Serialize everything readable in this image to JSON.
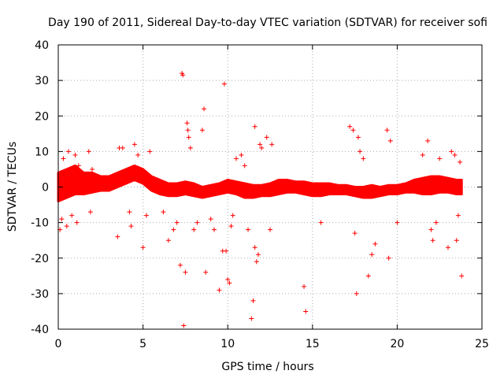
{
  "chart_data": {
    "type": "scatter",
    "title": "Day 190 of 2011, Sidereal Day-to-day VTEC variation (SDTVAR) for receiver sofi",
    "xlabel": "GPS time / hours",
    "ylabel": "SDTVAR / TECUs",
    "xlim": [
      0,
      25
    ],
    "ylim": [
      -40,
      40
    ],
    "x_ticks": [
      0,
      5,
      10,
      15,
      20,
      25
    ],
    "x_tick_labels": [
      "0",
      "5",
      "10",
      "15",
      "20",
      "25"
    ],
    "y_ticks": [
      -40,
      -30,
      -20,
      -10,
      0,
      10,
      20,
      30,
      40
    ],
    "y_tick_labels": [
      "-40",
      "-30",
      "-20",
      "-10",
      "0",
      "10",
      "20",
      "30",
      "40"
    ],
    "grid": true,
    "marker": "plus",
    "color": "#ff0000",
    "band_envelope": {
      "x": [
        0,
        0.5,
        1,
        1.5,
        2,
        2.5,
        3,
        3.5,
        4,
        4.5,
        5,
        5.5,
        6,
        6.5,
        7,
        7.5,
        8,
        8.5,
        9,
        9.5,
        10,
        10.5,
        11,
        11.5,
        12,
        12.5,
        13,
        13.5,
        14,
        14.5,
        15,
        15.5,
        16,
        16.5,
        17,
        17.5,
        18,
        18.5,
        19,
        19.5,
        20,
        20.5,
        21,
        21.5,
        22,
        22.5,
        23,
        23.5,
        23.8
      ],
      "upper": [
        4,
        5,
        6,
        4,
        4,
        3,
        3,
        4,
        5,
        6,
        5,
        3,
        2,
        1,
        1,
        1.5,
        1,
        0,
        0.5,
        1,
        2,
        1.5,
        1,
        0.5,
        0.5,
        1,
        2,
        2,
        1.5,
        1.5,
        1,
        1,
        1,
        0.5,
        0.5,
        0,
        0,
        0.5,
        0,
        0.5,
        0.5,
        1,
        2,
        2.5,
        3,
        3,
        2.5,
        2,
        2
      ],
      "lower": [
        -4,
        -3,
        -2,
        -2,
        -1.5,
        -1,
        -1,
        0,
        1,
        2,
        1,
        -1,
        -2,
        -2.5,
        -2.5,
        -2,
        -2.5,
        -3,
        -2.5,
        -2,
        -1.5,
        -2,
        -3,
        -3,
        -2.5,
        -2.5,
        -2,
        -1.5,
        -1.5,
        -2,
        -2.5,
        -2.5,
        -2,
        -2,
        -2,
        -2.5,
        -3,
        -3,
        -2.5,
        -2,
        -2,
        -1.5,
        -1.5,
        -2,
        -2,
        -1.5,
        -1.5,
        -2,
        -2
      ]
    },
    "scattered_points": [
      [
        0.1,
        -12
      ],
      [
        0.2,
        -9
      ],
      [
        0.3,
        8
      ],
      [
        0.5,
        -11
      ],
      [
        0.6,
        10
      ],
      [
        0.8,
        -8
      ],
      [
        1.0,
        9
      ],
      [
        1.1,
        -10
      ],
      [
        1.2,
        6
      ],
      [
        1.8,
        10
      ],
      [
        1.9,
        -7
      ],
      [
        2.0,
        5
      ],
      [
        3.5,
        -14
      ],
      [
        3.6,
        11
      ],
      [
        3.8,
        11
      ],
      [
        4.2,
        -7
      ],
      [
        4.3,
        -11
      ],
      [
        4.5,
        12
      ],
      [
        4.7,
        9
      ],
      [
        5.0,
        -17
      ],
      [
        5.2,
        -8
      ],
      [
        5.4,
        10
      ],
      [
        6.2,
        -7
      ],
      [
        6.5,
        -15
      ],
      [
        6.8,
        -12
      ],
      [
        7.0,
        -10
      ],
      [
        7.2,
        -22
      ],
      [
        7.3,
        32
      ],
      [
        7.35,
        31.5
      ],
      [
        7.4,
        -39
      ],
      [
        7.5,
        -24
      ],
      [
        7.6,
        18
      ],
      [
        7.65,
        16
      ],
      [
        7.7,
        14
      ],
      [
        7.8,
        11
      ],
      [
        8.0,
        -12
      ],
      [
        8.2,
        -10
      ],
      [
        8.5,
        16
      ],
      [
        8.6,
        22
      ],
      [
        8.7,
        -24
      ],
      [
        9.0,
        -9
      ],
      [
        9.2,
        -12
      ],
      [
        9.5,
        -29
      ],
      [
        9.7,
        -18
      ],
      [
        9.8,
        29
      ],
      [
        9.9,
        -18
      ],
      [
        10.0,
        -26
      ],
      [
        10.1,
        -27
      ],
      [
        10.2,
        -11
      ],
      [
        10.3,
        -8
      ],
      [
        10.5,
        8
      ],
      [
        10.8,
        9
      ],
      [
        11.0,
        6
      ],
      [
        11.2,
        -12
      ],
      [
        11.4,
        -37
      ],
      [
        11.5,
        -32
      ],
      [
        11.6,
        -17
      ],
      [
        11.6,
        17
      ],
      [
        11.7,
        -21
      ],
      [
        11.8,
        -19
      ],
      [
        11.9,
        12
      ],
      [
        12.0,
        11
      ],
      [
        12.3,
        14
      ],
      [
        12.5,
        -12
      ],
      [
        12.6,
        12
      ],
      [
        14.5,
        -28
      ],
      [
        14.6,
        -35
      ],
      [
        15.5,
        -10
      ],
      [
        17.2,
        17
      ],
      [
        17.4,
        16
      ],
      [
        17.5,
        -13
      ],
      [
        17.6,
        -30
      ],
      [
        17.7,
        14
      ],
      [
        17.8,
        10
      ],
      [
        18.0,
        8
      ],
      [
        18.3,
        -25
      ],
      [
        18.5,
        -19
      ],
      [
        18.7,
        -16
      ],
      [
        19.4,
        16
      ],
      [
        19.5,
        -20
      ],
      [
        19.6,
        13
      ],
      [
        20.0,
        -10
      ],
      [
        21.5,
        9
      ],
      [
        21.8,
        13
      ],
      [
        22.0,
        -12
      ],
      [
        22.1,
        -15
      ],
      [
        22.3,
        -10
      ],
      [
        22.5,
        8
      ],
      [
        23.0,
        -17
      ],
      [
        23.2,
        10
      ],
      [
        23.4,
        9
      ],
      [
        23.5,
        -15
      ],
      [
        23.6,
        -8
      ],
      [
        23.7,
        7
      ],
      [
        23.8,
        -25
      ]
    ]
  }
}
